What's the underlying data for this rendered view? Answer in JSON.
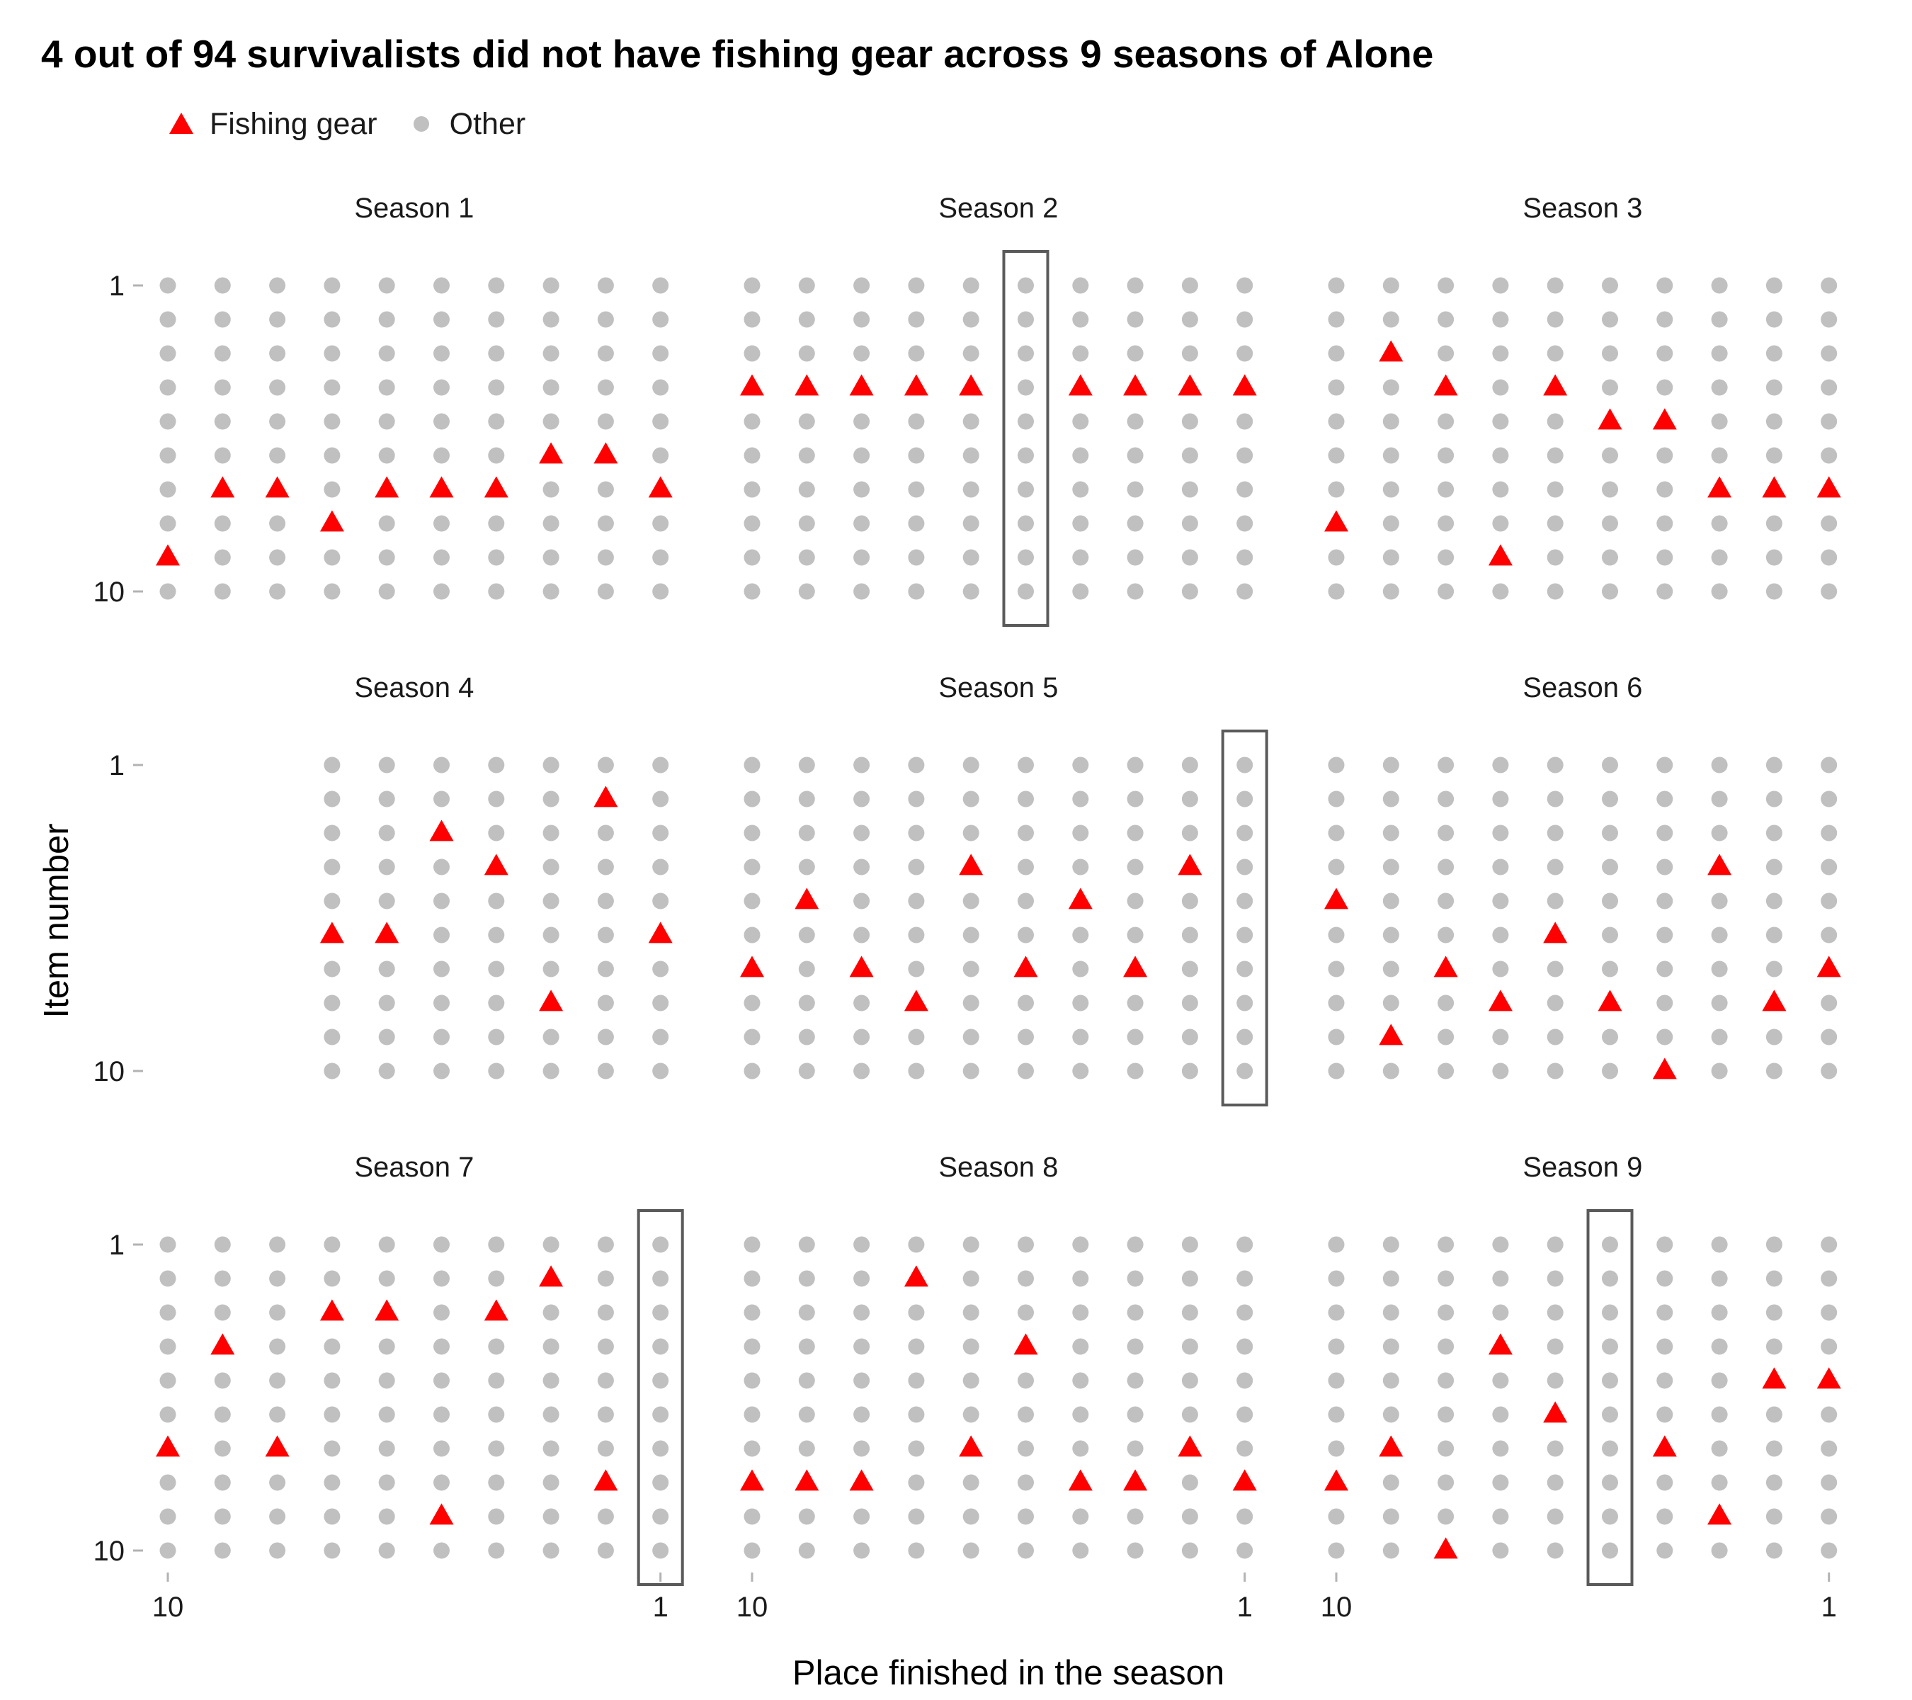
{
  "chart_data": {
    "type": "scatter",
    "title": "4 out of 94 survivalists did not have fishing gear across 9 seasons of Alone",
    "xlabel": "Place finished in the season",
    "ylabel": "Item number",
    "x_ticks": [
      "10",
      "1"
    ],
    "y_ticks": [
      "1",
      "10"
    ],
    "xlim": [
      10,
      1
    ],
    "ylim": [
      1,
      10
    ],
    "grid": false,
    "legend_position": "top-left",
    "legend": [
      {
        "name": "Fishing gear",
        "shape": "triangle",
        "color": "#ff0000"
      },
      {
        "name": "Other",
        "shape": "circle",
        "color": "#c0c0c0"
      }
    ],
    "facets": [
      {
        "label": "Season 1",
        "places": [
          10,
          9,
          8,
          7,
          6,
          5,
          4,
          3,
          2,
          1
        ],
        "fishing_gear": [
          [
            10,
            9
          ],
          [
            9,
            7
          ],
          [
            8,
            7
          ],
          [
            7,
            8
          ],
          [
            6,
            7
          ],
          [
            5,
            7
          ],
          [
            4,
            7
          ],
          [
            3,
            6
          ],
          [
            2,
            6
          ],
          [
            1,
            7
          ]
        ],
        "no_fishing_gear_place": null
      },
      {
        "label": "Season 2",
        "places": [
          10,
          9,
          8,
          7,
          6,
          5,
          4,
          3,
          2,
          1
        ],
        "fishing_gear": [
          [
            10,
            4
          ],
          [
            9,
            4
          ],
          [
            8,
            4
          ],
          [
            7,
            4
          ],
          [
            6,
            4
          ],
          [
            4,
            4
          ],
          [
            3,
            4
          ],
          [
            2,
            4
          ],
          [
            1,
            4
          ]
        ],
        "no_fishing_gear_place": 5
      },
      {
        "label": "Season 3",
        "places": [
          10,
          9,
          8,
          7,
          6,
          5,
          4,
          3,
          2,
          1
        ],
        "fishing_gear": [
          [
            10,
            8
          ],
          [
            9,
            3
          ],
          [
            8,
            4
          ],
          [
            7,
            9
          ],
          [
            6,
            4
          ],
          [
            5,
            5
          ],
          [
            4,
            5
          ],
          [
            3,
            7
          ],
          [
            2,
            7
          ],
          [
            1,
            7
          ]
        ],
        "no_fishing_gear_place": null
      },
      {
        "label": "Season 4",
        "places": [
          7,
          6,
          5,
          4,
          3,
          2,
          1
        ],
        "fishing_gear": [
          [
            7,
            6
          ],
          [
            6,
            6
          ],
          [
            5,
            3
          ],
          [
            4,
            4
          ],
          [
            3,
            8
          ],
          [
            2,
            2
          ],
          [
            1,
            6
          ]
        ],
        "no_fishing_gear_place": null
      },
      {
        "label": "Season 5",
        "places": [
          10,
          9,
          8,
          7,
          6,
          5,
          4,
          3,
          2,
          1
        ],
        "fishing_gear": [
          [
            10,
            7
          ],
          [
            9,
            5
          ],
          [
            8,
            7
          ],
          [
            7,
            8
          ],
          [
            6,
            4
          ],
          [
            5,
            7
          ],
          [
            4,
            5
          ],
          [
            3,
            7
          ],
          [
            2,
            4
          ]
        ],
        "no_fishing_gear_place": 1
      },
      {
        "label": "Season 6",
        "places": [
          10,
          9,
          8,
          7,
          6,
          5,
          4,
          3,
          2,
          1
        ],
        "fishing_gear": [
          [
            10,
            5
          ],
          [
            9,
            9
          ],
          [
            8,
            7
          ],
          [
            7,
            8
          ],
          [
            6,
            6
          ],
          [
            5,
            8
          ],
          [
            4,
            10
          ],
          [
            3,
            4
          ],
          [
            2,
            8
          ],
          [
            1,
            7
          ]
        ],
        "no_fishing_gear_place": null
      },
      {
        "label": "Season 7",
        "places": [
          10,
          9,
          8,
          7,
          6,
          5,
          4,
          3,
          2,
          1
        ],
        "fishing_gear": [
          [
            10,
            7
          ],
          [
            9,
            4
          ],
          [
            8,
            7
          ],
          [
            7,
            3
          ],
          [
            6,
            3
          ],
          [
            5,
            9
          ],
          [
            4,
            3
          ],
          [
            3,
            2
          ],
          [
            2,
            8
          ]
        ],
        "no_fishing_gear_place": 1
      },
      {
        "label": "Season 8",
        "places": [
          10,
          9,
          8,
          7,
          6,
          5,
          4,
          3,
          2,
          1
        ],
        "fishing_gear": [
          [
            10,
            8
          ],
          [
            9,
            8
          ],
          [
            8,
            8
          ],
          [
            7,
            2
          ],
          [
            6,
            7
          ],
          [
            5,
            4
          ],
          [
            4,
            8
          ],
          [
            3,
            8
          ],
          [
            2,
            7
          ],
          [
            1,
            8
          ]
        ],
        "no_fishing_gear_place": null
      },
      {
        "label": "Season 9",
        "places": [
          10,
          9,
          8,
          7,
          6,
          5,
          4,
          3,
          2,
          1
        ],
        "fishing_gear": [
          [
            10,
            8
          ],
          [
            9,
            7
          ],
          [
            8,
            10
          ],
          [
            7,
            4
          ],
          [
            6,
            6
          ],
          [
            4,
            7
          ],
          [
            3,
            9
          ],
          [
            2,
            5
          ],
          [
            1,
            5
          ]
        ],
        "no_fishing_gear_place": 5
      }
    ]
  }
}
